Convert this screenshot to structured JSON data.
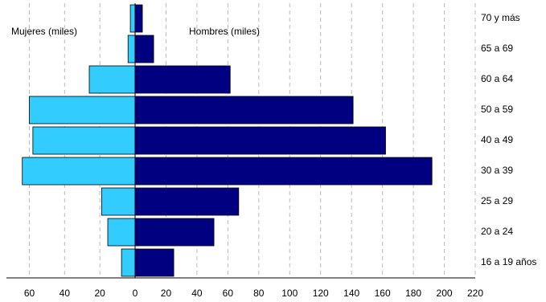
{
  "chart_data": {
    "type": "pyramid",
    "categories": [
      "70 y más",
      "65 a 69",
      "60 a 64",
      "50 a 59",
      "40 a 49",
      "30 a 39",
      "25 a 29",
      "20 a 24",
      "16 a 19 años"
    ],
    "series": [
      {
        "name": "Mujeres (miles)",
        "color": "#33ccff",
        "axis": "x",
        "values": [
          2.7,
          4,
          26,
          60,
          58,
          64,
          19,
          15.5,
          7.7
        ]
      },
      {
        "name": "Hombres (miles)",
        "color": "#000080",
        "axis": "x2",
        "values": [
          4.7,
          12,
          61.5,
          141,
          162,
          192,
          67,
          51,
          25
        ]
      }
    ],
    "xlim": [
      73,
      0
    ],
    "xticks": [
      60,
      40,
      20,
      0
    ],
    "x2lim": [
      0,
      220
    ],
    "x2ticks": [
      0,
      20,
      40,
      60,
      80,
      100,
      120,
      140,
      160,
      180,
      200,
      220
    ],
    "grid": true
  }
}
